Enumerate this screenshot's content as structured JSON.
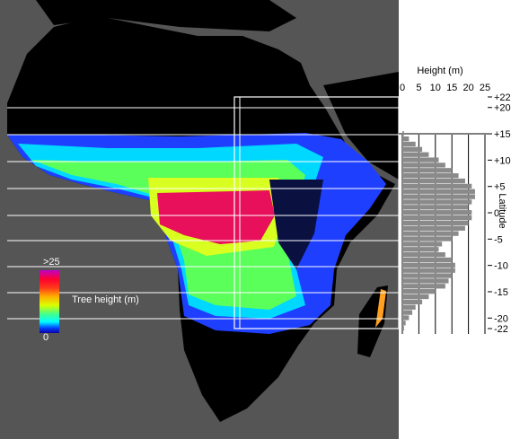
{
  "legend": {
    "title": "Tree height (m)",
    "max_label": ">25",
    "min_label": "0"
  },
  "chart_data": {
    "type": "bar",
    "orientation": "horizontal",
    "xlabel": "Height (m)",
    "ylabel": "Latitude",
    "xlim": [
      0,
      25
    ],
    "ylim": [
      -22,
      22
    ],
    "x_ticks": [
      "0",
      "5",
      "10",
      "15",
      "20",
      "25"
    ],
    "y_tick_labels": [
      "+22",
      "+20",
      "+15",
      "+10",
      "+5",
      "0",
      "-5",
      "-10",
      "-15",
      "-20",
      "-22"
    ],
    "y_tick_values": [
      22,
      20,
      15,
      10,
      5,
      0,
      -5,
      -10,
      -15,
      -20,
      -22
    ],
    "grid_x": true,
    "latitudes": [
      15,
      14,
      13,
      12,
      11,
      10,
      9,
      8,
      7,
      6,
      5,
      4,
      3,
      2,
      1,
      0,
      -1,
      -2,
      -3,
      -4,
      -5,
      -6,
      -7,
      -8,
      -9,
      -10,
      -11,
      -12,
      -13,
      -14,
      -15,
      -16,
      -17,
      -18,
      -19,
      -20,
      -21,
      -22
    ],
    "values": [
      0.5,
      2,
      4,
      6,
      8,
      11,
      13,
      15,
      17,
      19,
      21,
      22,
      22,
      21,
      20,
      21,
      21,
      20,
      19,
      17,
      15,
      12,
      11,
      13,
      15,
      16,
      16,
      15,
      14,
      13,
      10,
      8,
      6,
      4,
      3,
      2,
      1,
      0.5
    ]
  }
}
